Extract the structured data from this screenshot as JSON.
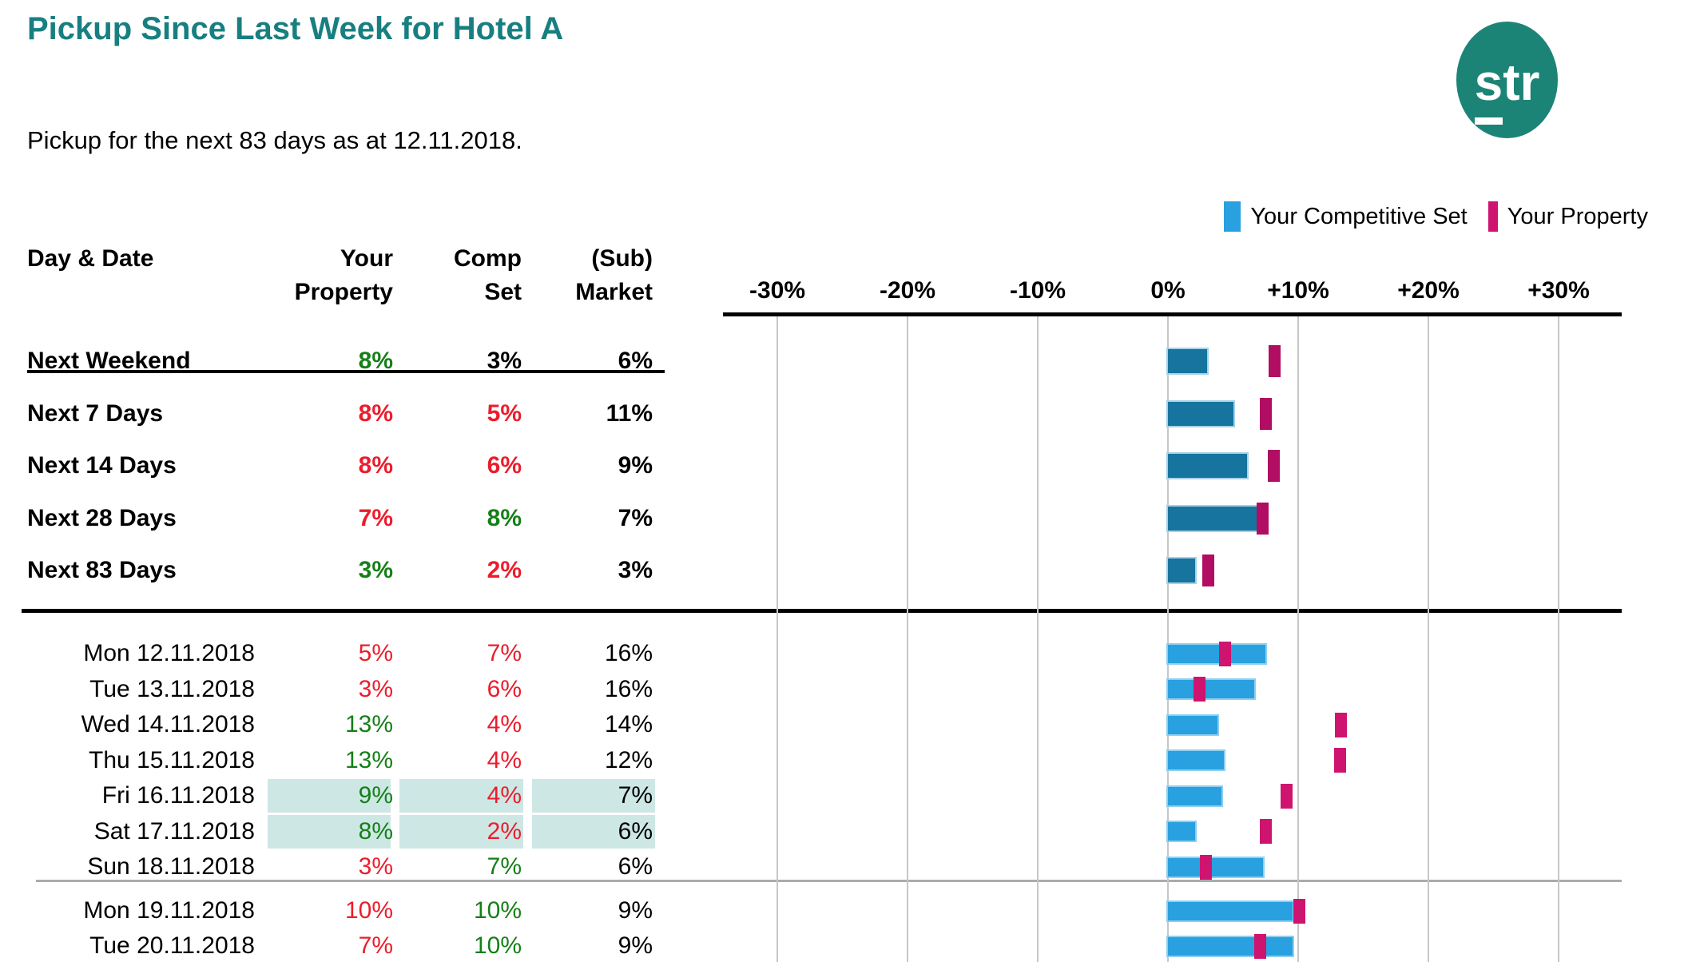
{
  "page": {
    "title": "Pickup Since Last Week for Hotel A",
    "subtitle": "Pickup for the next 83 days as at 12.11.2018."
  },
  "logo": {
    "underlined_letter": "s",
    "rest": "tr"
  },
  "legend": {
    "comp_label": "Your Competitive Set",
    "prop_label": "Your Property"
  },
  "table": {
    "headers": {
      "day_date": "Day & Date",
      "property": [
        "Your",
        "Property"
      ],
      "comp_set": [
        "Comp",
        "Set"
      ],
      "market": [
        "(Sub)",
        "Market"
      ]
    }
  },
  "colors": {
    "title_teal": "#187F81",
    "logo_teal": "#1C8476",
    "comp_summary": "#17749F",
    "comp_summary_border": "#A5D2E8",
    "prop_summary": "#B10D62",
    "comp_daily": "#29A0DF",
    "comp_daily_border": "#8ECFF0",
    "prop_daily": "#CE146F",
    "highlight_cell": "#CDE7E5",
    "grid": "#C7C7C7",
    "separator_thin": "#ABABAB",
    "value_pos": "#157F17",
    "value_neg": "#EC1C2C",
    "value_neu": "#000000"
  },
  "chart_data": {
    "type": "bar",
    "orientation": "horizontal",
    "unit": "%",
    "x_ticks": [
      -30,
      -20,
      -10,
      0,
      10,
      20,
      30
    ],
    "x_tick_labels": [
      "-30%",
      "-20%",
      "-10%",
      "0%",
      "+10%",
      "+20%",
      "+30%"
    ],
    "x_range": [
      -34,
      35
    ],
    "grid": true,
    "legend_position": "top-right",
    "series_names": [
      "Your Competitive Set",
      "Your Property"
    ],
    "summary_rows": [
      {
        "label": "Next Weekend",
        "property": {
          "text": "8%",
          "tone": "pos"
        },
        "comp_set": {
          "text": "3%",
          "tone": "neu"
        },
        "market": {
          "text": "6%",
          "tone": "neu"
        },
        "bar_comp_pct": 3.0,
        "bar_prop_pct": 8.2
      },
      {
        "label": "Next 7 Days",
        "property": {
          "text": "8%",
          "tone": "neg"
        },
        "comp_set": {
          "text": "5%",
          "tone": "neg"
        },
        "market": {
          "text": "11%",
          "tone": "neu"
        },
        "bar_comp_pct": 5.0,
        "bar_prop_pct": 7.5
      },
      {
        "label": "Next 14 Days",
        "property": {
          "text": "8%",
          "tone": "neg"
        },
        "comp_set": {
          "text": "6%",
          "tone": "neg"
        },
        "market": {
          "text": "9%",
          "tone": "neu"
        },
        "bar_comp_pct": 6.1,
        "bar_prop_pct": 8.1
      },
      {
        "label": "Next 28 Days",
        "property": {
          "text": "7%",
          "tone": "neg"
        },
        "comp_set": {
          "text": "8%",
          "tone": "pos"
        },
        "market": {
          "text": "7%",
          "tone": "neu"
        },
        "bar_comp_pct": 6.8,
        "bar_prop_pct": 7.3
      },
      {
        "label": "Next 83 Days",
        "property": {
          "text": "3%",
          "tone": "pos"
        },
        "comp_set": {
          "text": "2%",
          "tone": "neg"
        },
        "market": {
          "text": "3%",
          "tone": "neu"
        },
        "bar_comp_pct": 2.1,
        "bar_prop_pct": 3.1
      }
    ],
    "daily_rows": [
      {
        "label": "Mon 12.11.2018",
        "group": 1,
        "highlighted": false,
        "property": {
          "text": "5%",
          "tone": "neg"
        },
        "comp_set": {
          "text": "7%",
          "tone": "neg"
        },
        "market": {
          "text": "16%",
          "tone": "neu"
        },
        "bar_comp_pct": 7.5,
        "bar_prop_pct": 4.4
      },
      {
        "label": "Tue 13.11.2018",
        "group": 1,
        "highlighted": false,
        "property": {
          "text": "3%",
          "tone": "neg"
        },
        "comp_set": {
          "text": "6%",
          "tone": "neg"
        },
        "market": {
          "text": "16%",
          "tone": "neu"
        },
        "bar_comp_pct": 6.6,
        "bar_prop_pct": 2.4
      },
      {
        "label": "Wed 14.11.2018",
        "group": 1,
        "highlighted": false,
        "property": {
          "text": "13%",
          "tone": "pos"
        },
        "comp_set": {
          "text": "4%",
          "tone": "neg"
        },
        "market": {
          "text": "14%",
          "tone": "neu"
        },
        "bar_comp_pct": 3.8,
        "bar_prop_pct": 13.3
      },
      {
        "label": "Thu 15.11.2018",
        "group": 1,
        "highlighted": false,
        "property": {
          "text": "13%",
          "tone": "pos"
        },
        "comp_set": {
          "text": "4%",
          "tone": "neg"
        },
        "market": {
          "text": "12%",
          "tone": "neu"
        },
        "bar_comp_pct": 4.3,
        "bar_prop_pct": 13.2
      },
      {
        "label": "Fri 16.11.2018",
        "group": 1,
        "highlighted": true,
        "property": {
          "text": "9%",
          "tone": "pos"
        },
        "comp_set": {
          "text": "4%",
          "tone": "neg"
        },
        "market": {
          "text": "7%",
          "tone": "neu"
        },
        "bar_comp_pct": 4.1,
        "bar_prop_pct": 9.1
      },
      {
        "label": "Sat 17.11.2018",
        "group": 1,
        "highlighted": true,
        "property": {
          "text": "8%",
          "tone": "pos"
        },
        "comp_set": {
          "text": "2%",
          "tone": "neg"
        },
        "market": {
          "text": "6%",
          "tone": "neu"
        },
        "bar_comp_pct": 2.1,
        "bar_prop_pct": 7.5
      },
      {
        "label": "Sun 18.11.2018",
        "group": 1,
        "highlighted": false,
        "property": {
          "text": "3%",
          "tone": "neg"
        },
        "comp_set": {
          "text": "7%",
          "tone": "pos"
        },
        "market": {
          "text": "6%",
          "tone": "neu"
        },
        "bar_comp_pct": 7.3,
        "bar_prop_pct": 2.9
      },
      {
        "label": "Mon 19.11.2018",
        "group": 2,
        "highlighted": false,
        "property": {
          "text": "10%",
          "tone": "neg"
        },
        "comp_set": {
          "text": "10%",
          "tone": "pos"
        },
        "market": {
          "text": "9%",
          "tone": "neu"
        },
        "bar_comp_pct": 9.6,
        "bar_prop_pct": 10.1
      },
      {
        "label": "Tue 20.11.2018",
        "group": 2,
        "highlighted": false,
        "property": {
          "text": "7%",
          "tone": "neg"
        },
        "comp_set": {
          "text": "10%",
          "tone": "pos"
        },
        "market": {
          "text": "9%",
          "tone": "neu"
        },
        "bar_comp_pct": 9.6,
        "bar_prop_pct": 7.1
      }
    ]
  }
}
